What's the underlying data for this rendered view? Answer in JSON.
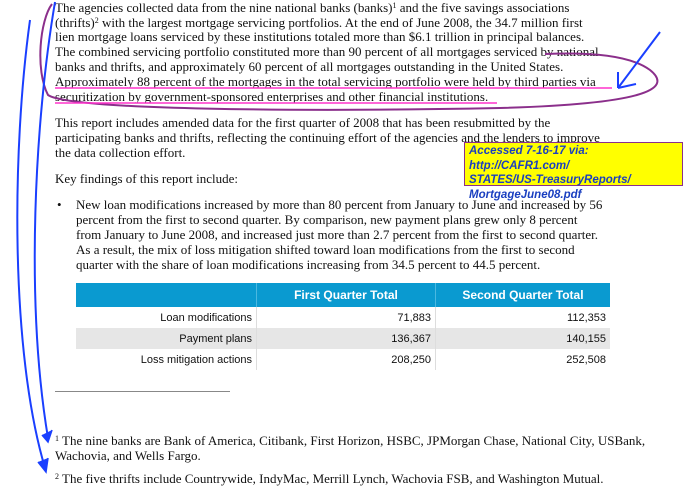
{
  "intro_paragraph": {
    "lines": [
      "The agencies collected data from the nine national banks (banks)",
      " and the five savings associations",
      "(thrifts)",
      " with the largest mortgage servicing portfolios.  At the end of June 2008, the 34.7 million first",
      "lien mortgage loans serviced by these institutions totaled more than $6.1 trillion in principal balances.",
      "The combined servicing portfolio constituted more than 90 percent of all mortgages serviced by national",
      "banks and thrifts, and approximately 60 percent of all mortgages outstanding in the United States.",
      "Approximately 88 percent of the mortgages in the total servicing portfolio were held by third parties via",
      "securitization by government-sponsored enterprises and other financial institutions."
    ],
    "footnote_ref_1": "1",
    "footnote_ref_2": "2"
  },
  "second_paragraph": {
    "lines": [
      "This report includes amended data for the first quarter of 2008 that has been resubmitted by the",
      "participating banks and thrifts, reflecting the continuing effort of the agencies and the lenders to improve",
      "the data collection effort."
    ]
  },
  "key_findings_heading": "Key findings of this report include:",
  "bullet": {
    "symbol": "•",
    "lines": [
      "New loan modifications increased by more than 80 percent from January to June and increased by 56",
      "percent from the first to second quarter.  By comparison, new payment plans grew only 8 percent",
      "from January to June 2008, and increased just more than 2.7 percent from the first to second quarter.",
      "As a result, the mix of loss mitigation shifted toward loan modifications from the first to second",
      "quarter with the share of loan modifications increasing from 34.5 percent to 44.5 percent."
    ]
  },
  "table": {
    "headers": [
      "",
      "First Quarter Total",
      "Second Quarter Total"
    ],
    "rows": [
      [
        "Loan modifications",
        "71,883",
        "112,353"
      ],
      [
        "Payment plans",
        "136,367",
        "140,155"
      ],
      [
        "Loss mitigation actions",
        "208,250",
        "252,508"
      ]
    ],
    "header_color": "#0a9ad0"
  },
  "annotation_note": {
    "lines": [
      "Accessed 7-16-17 via: http://CAFR1.com/",
      "STATES/US-TreasuryReports/",
      "MortgageJune08.pdf"
    ],
    "background": "#ffff00",
    "text_color": "#1a3fc0"
  },
  "footnotes": [
    {
      "num": "1",
      "lines": [
        "The nine banks are Bank of America, Citibank, First Horizon, HSBC, JPMorgan Chase, National City, USBank,",
        "Wachovia, and Wells Fargo."
      ]
    },
    {
      "num": "2",
      "lines": [
        "The five thrifts include Countrywide, IndyMac, Merrill Lynch, Wachovia FSB, and Washington Mutual."
      ]
    }
  ],
  "markup_colors": {
    "ellipse": "#8b2f8b",
    "arrows": "#1a3fff",
    "underline": "#ff33cc"
  }
}
